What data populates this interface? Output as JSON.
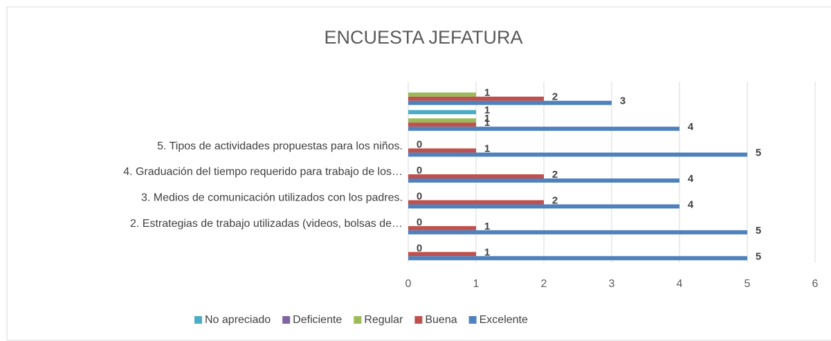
{
  "chart_data": {
    "type": "hbar",
    "title": "ENCUESTA JEFATURA",
    "categories": [
      null,
      "2. Estrategias de trabajo utilizadas (videos, bolsas de…",
      "3.  Medios de comunicación utilizados con los padres.",
      "4.  Graduación del tiempo requerido para trabajo de los…",
      "5. Tipos de actividades propuestas para los niños.",
      null,
      null
    ],
    "series": [
      {
        "name": "No apreciado",
        "color": "#4bacc6",
        "values": [
          null,
          null,
          null,
          null,
          null,
          1,
          null
        ]
      },
      {
        "name": "Deficiente",
        "color": "#8064a2",
        "values": [
          null,
          null,
          null,
          null,
          null,
          null,
          null
        ]
      },
      {
        "name": "Regular",
        "color": "#9bbb59",
        "values": [
          0,
          0,
          0,
          0,
          0,
          1,
          1
        ]
      },
      {
        "name": "Buena",
        "color": "#c0504d",
        "values": [
          1,
          1,
          2,
          2,
          1,
          1,
          2
        ]
      },
      {
        "name": "Excelente",
        "color": "#4f81bd",
        "values": [
          5,
          5,
          4,
          4,
          5,
          4,
          3
        ]
      }
    ],
    "xlim": [
      0,
      6
    ],
    "xticks": [
      0,
      1,
      2,
      3,
      4,
      5,
      6
    ],
    "grid": true,
    "legend": "bottom"
  }
}
